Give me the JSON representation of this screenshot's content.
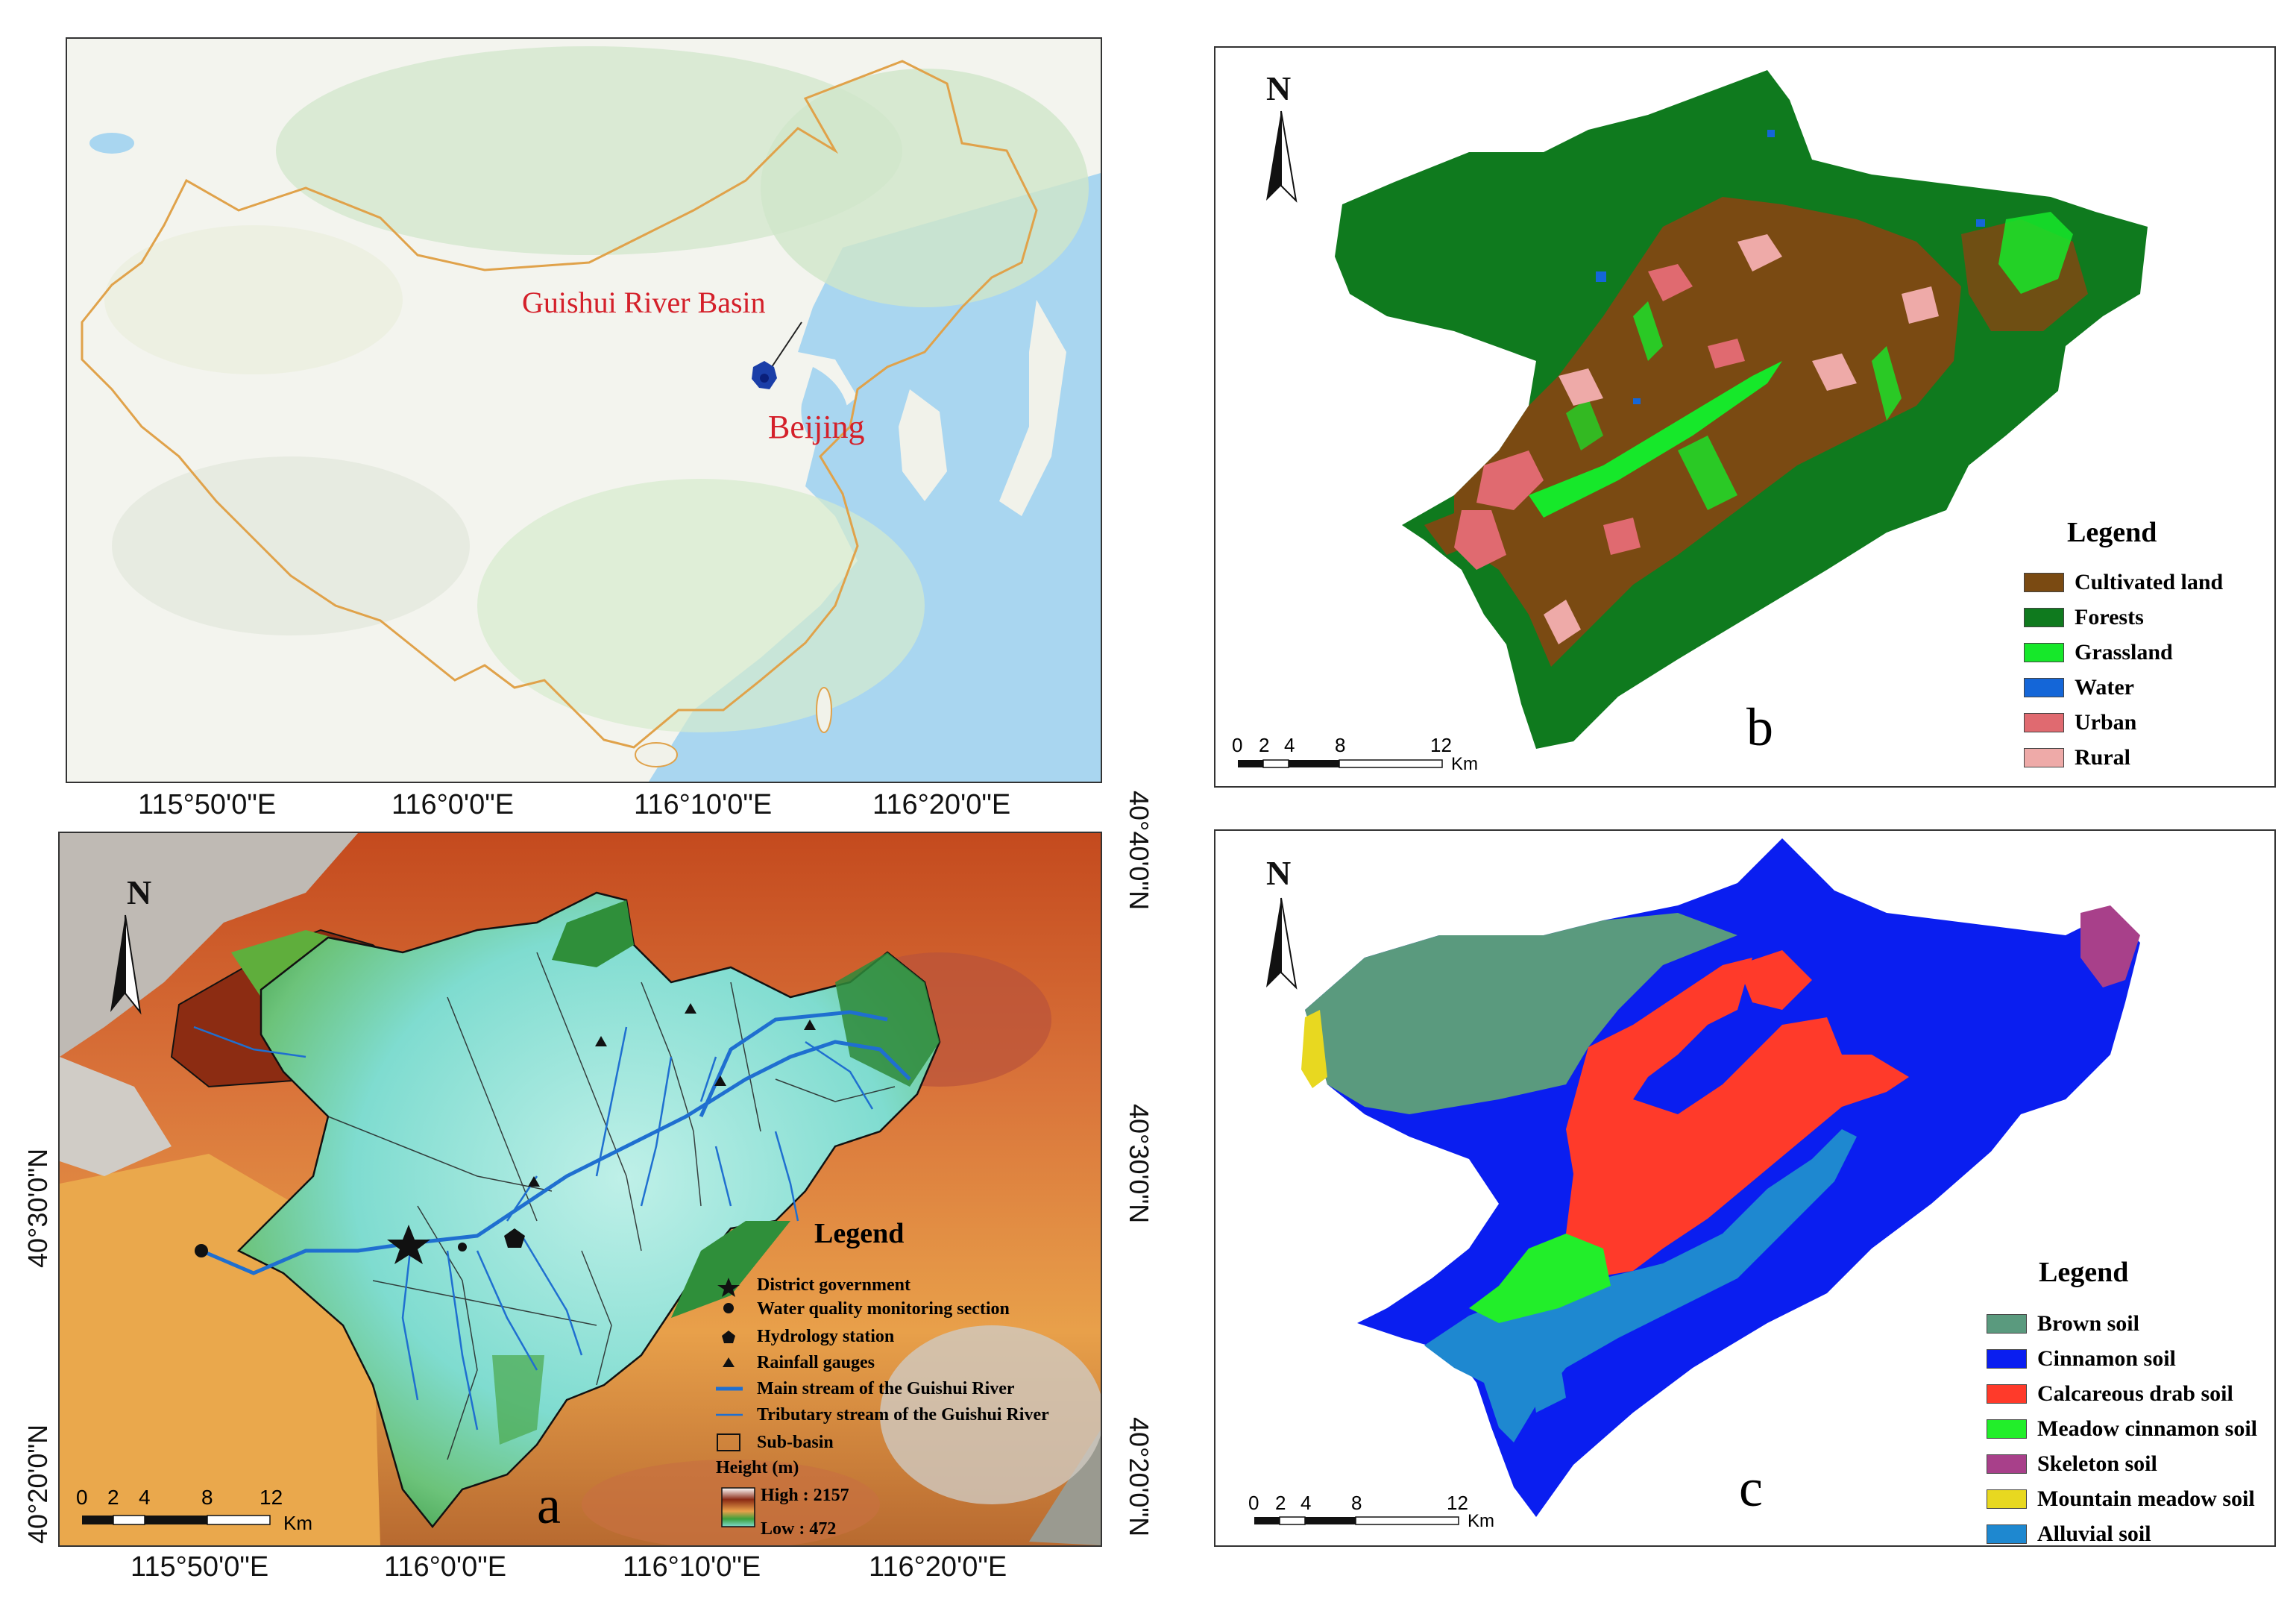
{
  "china_map": {
    "basin_label": "Guishui River Basin",
    "city_label": "Beijing",
    "colors": {
      "label": "#d4202a",
      "ocean": "#a9d6f0",
      "land": "#f3f4ee",
      "border": "#e0a24a",
      "marker": "#1a3ea8"
    }
  },
  "panel_a": {
    "letter": "a",
    "scale": {
      "ticks": [
        "0",
        "2",
        "4",
        "8",
        "12"
      ],
      "unit": "Km"
    },
    "lon_labels": [
      "115°50'0\"E",
      "116°0'0\"E",
      "116°10'0\"E",
      "116°20'0\"E"
    ],
    "lat_labels_left": [
      "40°30'0\"N",
      "40°20'0\"N"
    ],
    "lat_labels_right": [
      "40°40'0\"N",
      "40°30'0\"N",
      "40°20'0\"N"
    ],
    "legend": {
      "title": "Legend",
      "items": [
        {
          "symbol": "star",
          "label": "District government"
        },
        {
          "symbol": "circle",
          "label": "Water quality monitoring section"
        },
        {
          "symbol": "pentagon",
          "label": "Hydrology station"
        },
        {
          "symbol": "triangle",
          "label": "Rainfall gauges"
        },
        {
          "symbol": "thick-line",
          "label": "Main stream of the Guishui River"
        },
        {
          "symbol": "thin-line",
          "label": "Tributary stream of the Guishui River"
        },
        {
          "symbol": "box",
          "label": "Sub-basin"
        }
      ],
      "height_title": "Height (m)",
      "high_label": "High : 2157",
      "low_label": "Low : 472"
    }
  },
  "panel_b": {
    "letter": "b",
    "north": "N",
    "scale": {
      "ticks": [
        "0",
        "2",
        "4",
        "8",
        "12"
      ],
      "unit": "Km"
    },
    "legend": {
      "title": "Legend",
      "items": [
        {
          "label": "Cultivated land",
          "color": "#7a4a12"
        },
        {
          "label": "Forests",
          "color": "#0f7a1e"
        },
        {
          "label": "Grassland",
          "color": "#16e82a"
        },
        {
          "label": "Water",
          "color": "#1466d8"
        },
        {
          "label": "Urban",
          "color": "#e06a70"
        },
        {
          "label": "Rural",
          "color": "#eeaaa8"
        }
      ]
    }
  },
  "panel_c": {
    "letter": "c",
    "north": "N",
    "scale": {
      "ticks": [
        "0",
        "2",
        "4",
        "8",
        "12"
      ],
      "unit": "Km"
    },
    "legend": {
      "title": "Legend",
      "items": [
        {
          "label": "Brown soil",
          "color": "#5a9a7e"
        },
        {
          "label": "Cinnamon soil",
          "color": "#0a1ef0"
        },
        {
          "label": "Calcareous drab soil",
          "color": "#ff3a2a"
        },
        {
          "label": "Meadow cinnamon soil",
          "color": "#22ee2a"
        },
        {
          "label": "Skeleton soil",
          "color": "#a8408a"
        },
        {
          "label": "Mountain meadow soil",
          "color": "#e8d820"
        },
        {
          "label": "Alluvial soil",
          "color": "#1e88d0"
        }
      ]
    }
  }
}
